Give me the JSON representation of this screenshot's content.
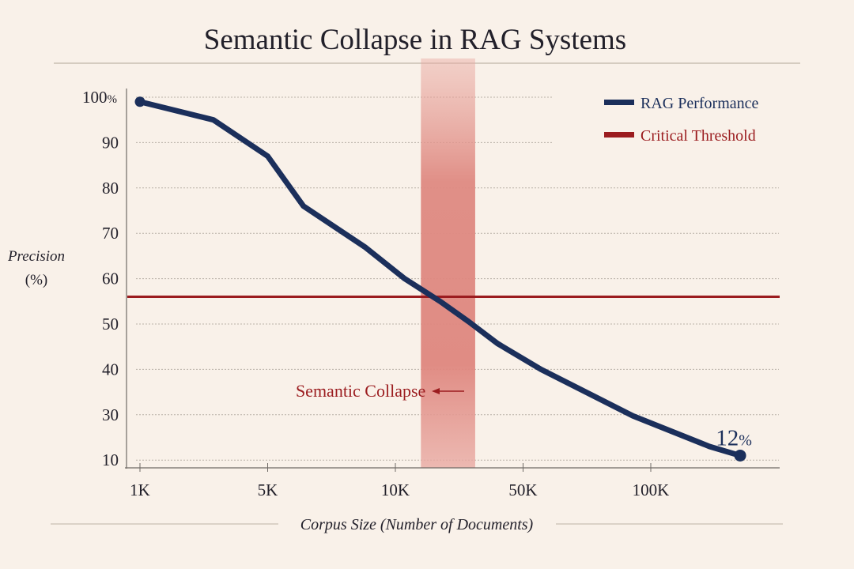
{
  "chart_data": {
    "type": "line",
    "title": "Semantic Collapse in RAG Systems",
    "xlabel": "Corpus Size (Number of Documents)",
    "ylabel": [
      "Precision",
      "(%)"
    ],
    "x_ticks": [
      {
        "label": "1K",
        "value": 1000
      },
      {
        "label": "5K",
        "value": 5000
      },
      {
        "label": "10K",
        "value": 10000
      },
      {
        "label": "50K",
        "value": 50000
      },
      {
        "label": "100K",
        "value": 100000
      }
    ],
    "y_ticks": [
      {
        "label": "100%",
        "value": 100
      },
      {
        "label": "90",
        "value": 90
      },
      {
        "label": "80",
        "value": 80
      },
      {
        "label": "70",
        "value": 70
      },
      {
        "label": "60",
        "value": 60
      },
      {
        "label": "50",
        "value": 50
      },
      {
        "label": "40",
        "value": 40
      },
      {
        "label": "30",
        "value": 30
      },
      {
        "label": "10",
        "value": 10
      }
    ],
    "grid": true,
    "legend_position": "top-right",
    "series": [
      {
        "name": "RAG Performance",
        "color": "#1b2f5b",
        "points": [
          {
            "x": 1000,
            "y": 99
          },
          {
            "x": 3300,
            "y": 95
          },
          {
            "x": 5000,
            "y": 87
          },
          {
            "x": 6400,
            "y": 76
          },
          {
            "x": 8800,
            "y": 67
          },
          {
            "x": 12900,
            "y": 60
          },
          {
            "x": 24000,
            "y": 55
          },
          {
            "x": 33000,
            "y": 50.5
          },
          {
            "x": 42000,
            "y": 45.7
          },
          {
            "x": 57000,
            "y": 40
          },
          {
            "x": 93000,
            "y": 29.5
          },
          {
            "x": 123000,
            "y": 16
          },
          {
            "x": 135000,
            "y": 12
          }
        ],
        "end_label": "12",
        "end_label_unit": "%"
      }
    ],
    "threshold": {
      "name": "Critical Threshold",
      "value": 56,
      "color": "#9b1c1f"
    },
    "annotation": {
      "label": "Semantic Collapse",
      "band_x": [
        18000,
        35000
      ],
      "color": "#9b1c1f"
    }
  }
}
